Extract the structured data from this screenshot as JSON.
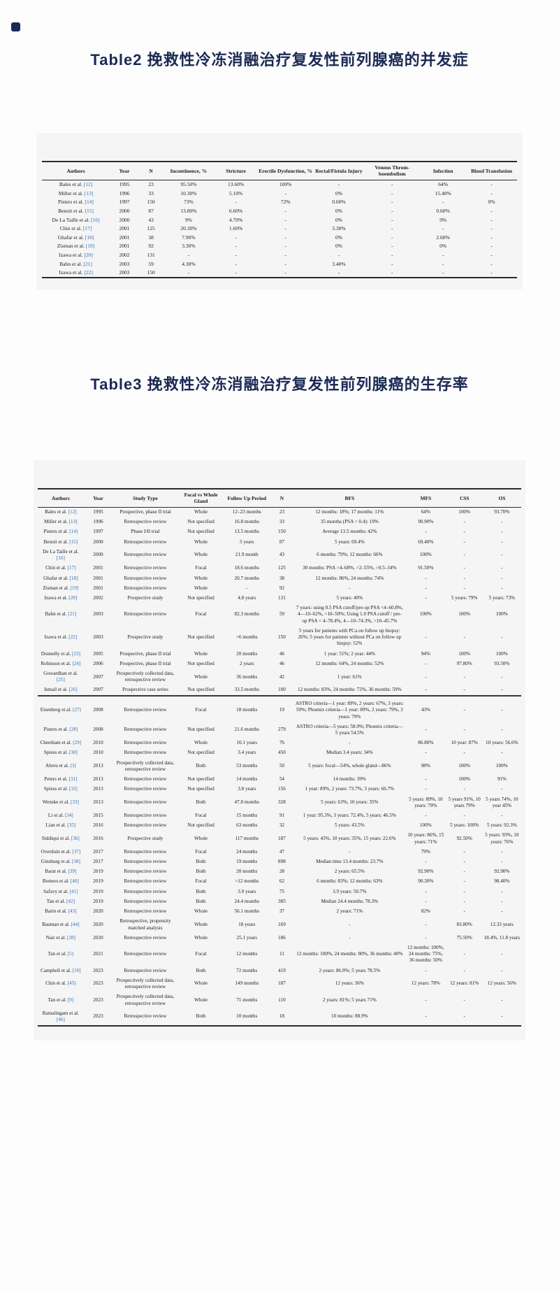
{
  "page": {
    "heading_table2": "Table2 挽救性冷冻消融治疗复发性前列腺癌的并发症",
    "heading_table3": "Table3 挽救性冷冻消融治疗复发性前列腺癌的生存率",
    "accent_color": "#1b2a55",
    "citation_color": "#2f6eb5"
  },
  "complications_table": {
    "columns": [
      "Authors",
      "Year",
      "N",
      "Incontinence, %",
      "Stricture",
      "Erectile Dysfunction, %",
      "Rectal/Fistula Injury",
      "Venous Throm-boembolism",
      "Infection",
      "Blood Transfusion"
    ],
    "rows": [
      [
        "Bales et al. [12]",
        "1995",
        "23",
        "95.50%",
        "13.60%",
        "100%",
        "-",
        "-",
        "64%",
        "-"
      ],
      [
        "Miller et al. [13]",
        "1996",
        "33",
        "10.30%",
        "5.10%",
        "-",
        "0%",
        "-",
        "15.40%",
        "-"
      ],
      [
        "Pisters et al. [14]",
        "1997",
        "150",
        "73%",
        "-",
        "72%",
        "0.60%",
        "-",
        "-",
        "0%"
      ],
      [
        "Benoit et al. [15]",
        "2000",
        "87",
        "13.80%",
        "6.60%",
        "-",
        "0%",
        "-",
        "0.60%",
        "-"
      ],
      [
        "De La Taille et al. [16]",
        "2000",
        "43",
        "9%",
        "4.70%",
        "-",
        "0%",
        "-",
        "9%",
        "-"
      ],
      [
        "Chin et al. [17]",
        "2001",
        "125",
        "20.30%",
        "1.60%",
        "-",
        "3.30%",
        "-",
        "-",
        "-"
      ],
      [
        "Ghafar et al. [18]",
        "2001",
        "38",
        "7.90%",
        "-",
        "-",
        "0%",
        "-",
        "2.60%",
        "-"
      ],
      [
        "Zisman et al. [19]",
        "2001",
        "92",
        "3.30%",
        "-",
        "-",
        "0%",
        "-",
        "0%",
        "-"
      ],
      [
        "Izawa et al. [20]",
        "2002",
        "131",
        "-",
        "-",
        "-",
        "-",
        "-",
        "-",
        "-"
      ],
      [
        "Bahn et al. [21]",
        "2003",
        "59",
        "4.30%",
        "-",
        "-",
        "3.40%",
        "-",
        "-",
        "-"
      ],
      [
        "Izawa et al. [22]",
        "2003",
        "150",
        "-",
        "-",
        "-",
        "-",
        "-",
        "-",
        "-"
      ]
    ]
  },
  "survival_table": {
    "columns": [
      "Authors",
      "Year",
      "Study Type",
      "Focal vs Whole Gland",
      "Follow Up Period",
      "N",
      "BFS",
      "MFS",
      "CSS",
      "OS"
    ],
    "section_break_row": 15,
    "rows": [
      [
        "Bales et al. [12]",
        "1995",
        "Prospective, phase II trial",
        "Whole",
        "12–23 months",
        "23",
        "12 months: 18%; 17 months: 11%",
        "64%",
        "100%",
        "93.70%"
      ],
      [
        "Miller et al. [13]",
        "1996",
        "Retrospective review",
        "Not specified",
        "16.8 months",
        "33",
        "35 months (PSA < 0.4): 19%",
        "90.90%",
        "-",
        "-"
      ],
      [
        "Pisters et al. [14]",
        "1997",
        "Phase I/II trial",
        "Not specified",
        "13.5 months",
        "150",
        "Average 13.5 months: 42%",
        "-",
        "-",
        "-"
      ],
      [
        "Benoit et al. [15]",
        "2000",
        "Retrospective review",
        "Whole",
        "5 years",
        "87",
        "5 years: 69.4%",
        "69.40%",
        "-",
        "-"
      ],
      [
        "De La Taille et al. [16]",
        "2000",
        "Retrospective review",
        "Whole",
        "21.9 month",
        "43",
        "6 months: 79%; 12 months: 66%",
        "100%",
        "-",
        "-"
      ],
      [
        "Chin et al. [17]",
        "2001",
        "Retrospective review",
        "Focal",
        "18.6 months",
        "125",
        "30 months: PSA >4–68%, >2–55%, >0.5–34%",
        "91.50%",
        "-",
        "-"
      ],
      [
        "Ghafar et al. [18]",
        "2001",
        "Retrospective review",
        "Whole",
        "20.7 months",
        "38",
        "12 months: 86%, 24 months: 74%",
        "-",
        "-",
        "-"
      ],
      [
        "Zisman et al. [19]",
        "2001",
        "Retrospective review",
        "Whole",
        "-",
        "92",
        "-",
        "-",
        "-",
        "-"
      ],
      [
        "Izawa et al. [20]",
        "2002",
        "Prospective study",
        "Not specified",
        "4.8 years",
        "131",
        "5 years: 40%",
        "-",
        "5 years: 79%",
        "5 years: 73%"
      ],
      [
        "Bahn et al. [21]",
        "2003",
        "Retrospective review",
        "Focal",
        "82.3 months",
        "59",
        "7 years: using 0.5 PSA cutoff/pre-op PSA <4–60.8%, 4—10–62%, >10–50%; Using 1.0 PSA cutoff / pre-op PSA < 4–78.4%, 4—10–74.3%, >10–45.7%",
        "100%",
        "100%",
        "100%"
      ],
      [
        "Izawa et al. [22]",
        "2003",
        "Prospective study",
        "Not specified",
        ">6 months",
        "150",
        "5 years for patients with PCa on follow up biopsy: 26%; 5 years for patients without PCa on follow up biopsy: 52%",
        "-",
        "-",
        "-"
      ],
      [
        "Donnelly et al. [23]",
        "2005",
        "Prospective, phase II trial",
        "Whole",
        "20 months",
        "46",
        "1 year: 51%; 2 year: 44%",
        "94%",
        "100%",
        "100%"
      ],
      [
        "Robinson et al. [24]",
        "2006",
        "Prospective, phase II trial",
        "Not specified",
        "2 years",
        "46",
        "12 months: 64%, 24 months: 52%",
        "-",
        "97.80%",
        "93.50%"
      ],
      [
        "Gowardhan et al. [25]",
        "2007",
        "Prospectively collected data, retrospective review",
        "Whole",
        "36 months",
        "42",
        "1 year: 61%",
        "-",
        "-",
        "-"
      ],
      [
        "Ismail et al. [26]",
        "2007",
        "Prospective case series",
        "Not specified",
        "33.5 months",
        "100",
        "12 months: 83%, 24 months: 72%, 36 months: 59%",
        "-",
        "-",
        "-"
      ],
      [
        "Eisenberg et al. [27]",
        "2008",
        "Retrospective review",
        "Focal",
        "18 months",
        "19",
        "ASTRO criteria—1 year: 89%, 2 years: 67%, 3 years: 50%; Phoenix criteria—1 year: 89%, 2 years: 79%, 3 years: 79%",
        "43%",
        "-",
        "-"
      ],
      [
        "Pisters et al. [28]",
        "2008",
        "Retrospective review",
        "Not specified",
        "21.6 months",
        "279",
        "ASTRO criteria—5 years: 58.9%; Phoenix criteria—5 years 54.5%",
        "-",
        "-",
        "-"
      ],
      [
        "Cheetham et al. [29]",
        "2010",
        "Retrospective review",
        "Whole",
        "10.1 years",
        "76",
        "-",
        "86.80%",
        "10 year: 87%",
        "10 years: 56.6%"
      ],
      [
        "Spiess et al. [30]",
        "2010",
        "Retrospective review",
        "Not specified",
        "3.4 years",
        "450",
        "Median 3.4 years: 34%",
        "-",
        "-",
        "-"
      ],
      [
        "Abreu et al. [3]",
        "2013",
        "Prospectively collected data, retrospective review",
        "Both",
        "53 months",
        "50",
        "5 years: focal—54%, whole gland—86%",
        "98%",
        "100%",
        "100%"
      ],
      [
        "Peters et al. [31]",
        "2013",
        "Retrospective review",
        "Not specified",
        "14 months",
        "54",
        "14 months: 39%",
        "-",
        "100%",
        "91%"
      ],
      [
        "Spiess et al. [32]",
        "2013",
        "Retrospective review",
        "Not specified",
        "3.8 years",
        "156",
        "1 year: 89%, 2 years: 73.7%, 3 years: 66.7%",
        "-",
        "-",
        "-"
      ],
      [
        "Wenske et al. [33]",
        "2013",
        "Retrospective review",
        "Both",
        "47.8 months",
        "328",
        "5 years: 63%, 10 years: 35%",
        "5 years: 89%, 10 years: 79%",
        "5 years 91%, 10 years 79%",
        "5 years 74%, 10 year 45%"
      ],
      [
        "Li et al. [34]",
        "2015",
        "Retrospective review",
        "Focal",
        "15 months",
        "91",
        "1 year: 95.3%, 3 years: 72.4%, 5 years: 46.5%",
        "-",
        "-",
        "-"
      ],
      [
        "Lian et al. [35]",
        "2016",
        "Retrospective review",
        "Not specified",
        "63 months",
        "32",
        "5 years: 43.5%",
        "100%",
        "5 years: 100%",
        "5 years: 92.3%"
      ],
      [
        "Siddiqui et al. [36]",
        "2016",
        "Prospective study",
        "Whole",
        "117 months",
        "187",
        "5 years: 45%, 10 years: 35%, 15 years: 22.6%",
        "10 years: 86%, 15 years: 71%",
        "92.50%",
        "5 years: 93%, 10 years: 76%"
      ],
      [
        "Overduin et al. [37]",
        "2017",
        "Retrospective review",
        "Focal",
        "24 months",
        "47",
        "-",
        "79%",
        "-",
        "-"
      ],
      [
        "Ginsburg et al. [38]",
        "2017",
        "Retrospective review",
        "Both",
        "19 months",
        "898",
        "Median time 13.4 months: 23.7%",
        "-",
        "-",
        "-"
      ],
      [
        "Barat et al. [39]",
        "2019",
        "Retrospective review",
        "Both",
        "20 months",
        "28",
        "2 years: 65.5%",
        "92.90%",
        "-",
        "92.90%"
      ],
      [
        "Bomers et al. [40]",
        "2019",
        "Retrospective review",
        "Focal",
        ">12 months",
        "62",
        "6 months: 83%; 12 months: 63%",
        "90.30%",
        "-",
        "98.40%"
      ],
      [
        "Safavy et al. [41]",
        "2019",
        "Retrospective review",
        "Both",
        "3.9 years",
        "75",
        "3.9 years: 50.7%",
        "-",
        "-",
        "-"
      ],
      [
        "Tan et al. [42]",
        "2019",
        "Retrospective review",
        "Both",
        "24.4 months",
        "385",
        "Median 24.4 months: 78.3%",
        "-",
        "-",
        "-"
      ],
      [
        "Bairn et al. [43]",
        "2020",
        "Retrospective review",
        "Whole",
        "56.1 months",
        "37",
        "2 years: 71%",
        "82%",
        "-",
        "-"
      ],
      [
        "Bauman et al. [44]",
        "2020",
        "Retrospective, propensity matched analysis",
        "Whole",
        "18 years",
        "169",
        "-",
        "-",
        "83.80%",
        "12.33 years"
      ],
      [
        "Nair et al. [28]",
        "2020",
        "Retrospective review",
        "Whole",
        "25.1 years",
        "186",
        "-",
        "-",
        "75.50%",
        "18.4%, 11.8 years"
      ],
      [
        "Tan et al. [5]",
        "2021",
        "Retrospective review",
        "Focal",
        "12 months",
        "11",
        "12 months: 100%, 24 months: 80%, 36 months: 40%",
        "12 months: 100%, 24 months: 75%, 36 months: 50%",
        "-",
        "-"
      ],
      [
        "Campbell et al. [10]",
        "2023",
        "Retrospective review",
        "Both",
        "72 months",
        "419",
        "2 years: 86.9%; 5 years 78.5%",
        "-",
        "-",
        "-"
      ],
      [
        "Chin et al. [45]",
        "2023",
        "Prospectively collected data, retrospective review",
        "Whole",
        "149 months",
        "187",
        "12 years: 36%",
        "12 years: 78%",
        "12 years: 81%",
        "12 years: 56%"
      ],
      [
        "Tan et al. [9]",
        "2023",
        "Prospectively collected data, retrospective review",
        "Whole",
        "71 months",
        "110",
        "2 years: 81%; 5 years 71%",
        "-",
        "-",
        "-"
      ],
      [
        "Ramalingam et al. [46]",
        "2023",
        "Retrospective review",
        "Both",
        "10 months",
        "18",
        "10 months: 88.9%",
        "-",
        "-",
        "-"
      ]
    ]
  }
}
